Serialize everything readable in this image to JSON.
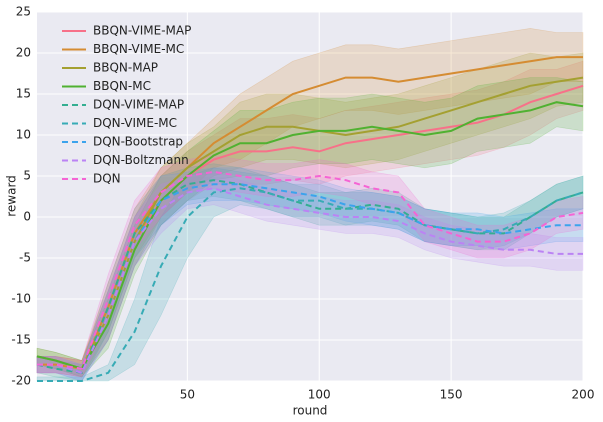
{
  "chart_data": {
    "type": "line",
    "xlabel": "round",
    "ylabel": "reward",
    "xlim": [
      -7,
      200
    ],
    "ylim": [
      -20,
      25
    ],
    "xticks": [
      50,
      100,
      150,
      200
    ],
    "yticks": [
      -20,
      -15,
      -10,
      -5,
      0,
      5,
      10,
      15,
      20,
      25
    ],
    "grid": true,
    "legend": "upper left",
    "background": "#eaeaf2",
    "x": [
      -7,
      0,
      10,
      20,
      30,
      40,
      50,
      60,
      70,
      80,
      90,
      100,
      110,
      120,
      130,
      140,
      150,
      160,
      170,
      180,
      190,
      200
    ],
    "series": [
      {
        "name": "BBQN-VIME-MAP",
        "color": "#f77189",
        "linestyle": "solid",
        "values": [
          -18,
          -18,
          -18.5,
          -12,
          -3,
          2,
          5,
          7,
          8,
          8,
          8.5,
          8,
          9,
          9.5,
          10,
          10.5,
          11,
          11.5,
          12.5,
          14,
          15,
          16
        ],
        "lower": [
          -19,
          -19,
          -19.5,
          -15,
          -6,
          -1,
          2,
          4,
          4,
          4,
          4.5,
          4,
          5,
          5.5,
          6,
          6.5,
          7,
          7.5,
          8.5,
          10,
          12,
          13
        ],
        "upper": [
          -17,
          -17,
          -17.5,
          -9,
          0,
          5,
          8,
          10,
          12,
          12,
          12.5,
          12,
          13,
          13.5,
          14,
          14.5,
          15,
          15.5,
          16.5,
          18,
          18,
          19
        ]
      },
      {
        "name": "BBQN-VIME-MC",
        "color": "#d58c32",
        "linestyle": "solid",
        "values": [
          -18,
          -18,
          -18.5,
          -11,
          -2,
          3,
          6,
          9,
          11,
          13,
          15,
          16,
          17,
          17,
          16.5,
          17,
          17.5,
          18,
          18.5,
          19,
          19.5,
          19.5
        ],
        "lower": [
          -19,
          -19,
          -19.5,
          -14,
          -5,
          0,
          3,
          6,
          7,
          9,
          11,
          12,
          13,
          13,
          12.5,
          13,
          13.5,
          14,
          14.5,
          15,
          16.5,
          16.5
        ],
        "upper": [
          -17,
          -17,
          -17.5,
          -8,
          1,
          6,
          9,
          12,
          15,
          17,
          19,
          20,
          21,
          21,
          20.5,
          21,
          21.5,
          22,
          22.5,
          23,
          22.5,
          22.5
        ]
      },
      {
        "name": "BBQN-MAP",
        "color": "#a4a031",
        "linestyle": "solid",
        "values": [
          -17,
          -17.5,
          -18.5,
          -12,
          -3,
          3,
          6,
          8,
          10,
          11,
          11,
          10.5,
          10,
          10.5,
          11,
          12,
          13,
          14,
          15,
          16,
          16.5,
          17
        ],
        "lower": [
          -18,
          -18.5,
          -19.5,
          -15,
          -6,
          0,
          3,
          5,
          6,
          7,
          7,
          6.5,
          6,
          6.5,
          7,
          8,
          9,
          10,
          11,
          12,
          13.5,
          14
        ],
        "upper": [
          -16,
          -16.5,
          -17.5,
          -9,
          0,
          6,
          9,
          11,
          14,
          15,
          15,
          14.5,
          14,
          14.5,
          15,
          16,
          17,
          18,
          19,
          20,
          19.5,
          20
        ]
      },
      {
        "name": "BBQN-MC",
        "color": "#50b131",
        "linestyle": "solid",
        "values": [
          -17,
          -17.5,
          -18.5,
          -13,
          -4,
          2,
          5,
          7.5,
          9,
          9,
          10,
          10.5,
          10.5,
          11,
          10.5,
          10,
          10.5,
          12,
          12.5,
          13,
          14,
          13.5
        ],
        "lower": [
          -18,
          -18.5,
          -19.5,
          -16,
          -7,
          -1,
          2,
          4.5,
          5,
          5,
          6,
          6.5,
          6.5,
          7,
          6.5,
          6,
          6.5,
          8,
          8.5,
          9,
          11,
          10.5
        ],
        "upper": [
          -16,
          -16.5,
          -17.5,
          -10,
          -1,
          5,
          8,
          10.5,
          13,
          13,
          14,
          14.5,
          14.5,
          15,
          14.5,
          14,
          14.5,
          16,
          16.5,
          17,
          17,
          16.5
        ]
      },
      {
        "name": "DQN-VIME-MAP",
        "color": "#34ae91",
        "linestyle": "dashed",
        "values": [
          -18,
          -18.5,
          -19,
          -11,
          -2,
          2,
          4,
          4.5,
          4,
          3,
          2,
          1,
          1,
          1.5,
          1,
          -1,
          -1.5,
          -2,
          -2,
          0,
          2,
          3
        ],
        "lower": [
          -19,
          -19.5,
          -20,
          -14,
          -5,
          -1,
          2,
          2.5,
          2,
          1,
          0,
          -1,
          -1,
          -0.5,
          -1,
          -3,
          -3.5,
          -4,
          -4,
          -2,
          0,
          1
        ],
        "upper": [
          -17,
          -17.5,
          -18,
          -8,
          1,
          5,
          6,
          6.5,
          6,
          5,
          4,
          3,
          3,
          3.5,
          3,
          1,
          0.5,
          0,
          0,
          2,
          4,
          5
        ]
      },
      {
        "name": "DQN-VIME-MC",
        "color": "#37abb5",
        "linestyle": "dashed",
        "values": [
          -20,
          -20,
          -20,
          -19,
          -14,
          -6,
          0,
          3,
          3.5,
          3,
          2,
          2,
          1,
          1,
          0.5,
          -1,
          -1.5,
          -2,
          -1.5,
          0,
          2,
          3
        ],
        "lower": [
          -20,
          -20,
          -20,
          -20,
          -18,
          -12,
          -5,
          0,
          1.5,
          1,
          0,
          0,
          -1,
          -1,
          -1.5,
          -3,
          -3.5,
          -4,
          -3.5,
          -2,
          0,
          1
        ],
        "upper": [
          -19.5,
          -19.5,
          -19.5,
          -18,
          -10,
          0,
          5,
          6,
          5.5,
          5,
          4,
          4,
          3,
          3,
          2.5,
          1,
          0.5,
          0,
          0.5,
          2,
          4,
          5
        ]
      },
      {
        "name": "DQN-Bootstrap",
        "color": "#3ba3ec",
        "linestyle": "dashed",
        "values": [
          -18,
          -18,
          -19,
          -12,
          -3,
          2,
          3.5,
          4,
          4,
          3.5,
          3,
          2.5,
          1.5,
          1,
          0.5,
          -1,
          -1.5,
          -1.5,
          -2,
          -1.5,
          -1,
          -1
        ],
        "lower": [
          -19,
          -19,
          -20,
          -15,
          -6,
          -1,
          1.5,
          2,
          2,
          1.5,
          1,
          0.5,
          -0.5,
          -1,
          -1.5,
          -3,
          -3.5,
          -3.5,
          -4,
          -3.5,
          -3,
          -3
        ],
        "upper": [
          -17,
          -17,
          -18,
          -9,
          0,
          5,
          5.5,
          6,
          6,
          5.5,
          5,
          4.5,
          3.5,
          3,
          2.5,
          1,
          0.5,
          0.5,
          0,
          0.5,
          1,
          1
        ]
      },
      {
        "name": "DQN-Boltzmann",
        "color": "#bb83f4",
        "linestyle": "dashed",
        "values": [
          -18,
          -18,
          -19,
          -12,
          -3,
          1,
          3,
          3.5,
          2.5,
          1.5,
          1,
          0.5,
          0,
          0,
          -0.5,
          -2,
          -3,
          -3.5,
          -4,
          -4,
          -4.5,
          -4.5
        ],
        "lower": [
          -19,
          -19,
          -20,
          -15,
          -6,
          -2,
          1,
          1.5,
          0.5,
          -0.5,
          -1,
          -1.5,
          -2,
          -2,
          -2.5,
          -4,
          -5,
          -5.5,
          -6,
          -6,
          -6.5,
          -6.5
        ],
        "upper": [
          -17,
          -17,
          -18,
          -9,
          0,
          4,
          5,
          5.5,
          4.5,
          3.5,
          3,
          2.5,
          2,
          2,
          1.5,
          0,
          -1,
          -1.5,
          -2,
          -2,
          -2.5,
          -2.5
        ]
      },
      {
        "name": "DQN",
        "color": "#f564d4",
        "linestyle": "dashed",
        "values": [
          -18,
          -18,
          -18.5,
          -10,
          -1,
          3,
          5,
          5.5,
          5,
          4.5,
          4.5,
          5,
          4.5,
          3.5,
          3,
          -1,
          -2,
          -3,
          -3,
          -2,
          0,
          0.5
        ],
        "lower": [
          -19,
          -19,
          -19.5,
          -13,
          -4,
          0,
          3,
          3.5,
          3,
          2.5,
          2.5,
          3,
          2.5,
          1.5,
          1,
          -3,
          -4,
          -5,
          -5,
          -4,
          -2,
          -1.5
        ],
        "upper": [
          -17,
          -17,
          -17.5,
          -7,
          2,
          6,
          7,
          7.5,
          7,
          6.5,
          6.5,
          7,
          6.5,
          5.5,
          5,
          1,
          0,
          -1,
          -1,
          0,
          2,
          2.5
        ]
      }
    ]
  }
}
